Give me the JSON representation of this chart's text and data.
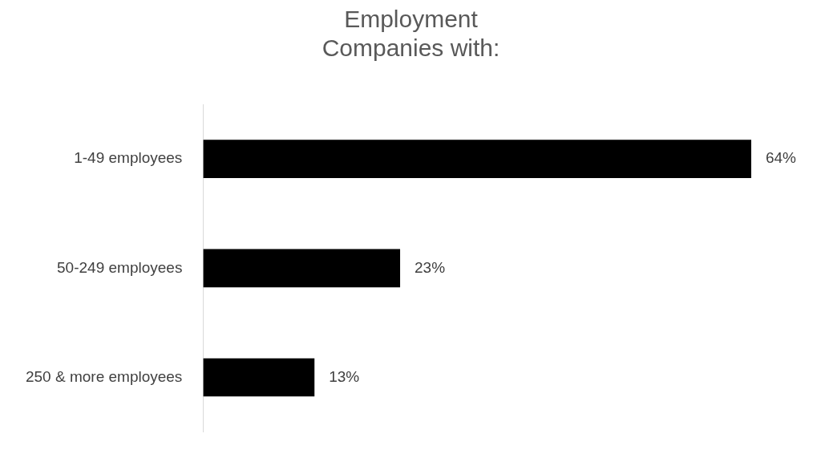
{
  "chart_data": {
    "type": "bar",
    "orientation": "horizontal",
    "title": "Employment\nCompanies with:",
    "categories": [
      "1-49 employees",
      "50-249 employees",
      "250 & more employees"
    ],
    "values": [
      64,
      23,
      13
    ],
    "value_labels": [
      "64%",
      "23%",
      "13%"
    ],
    "color": "#000000",
    "legend": false
  }
}
